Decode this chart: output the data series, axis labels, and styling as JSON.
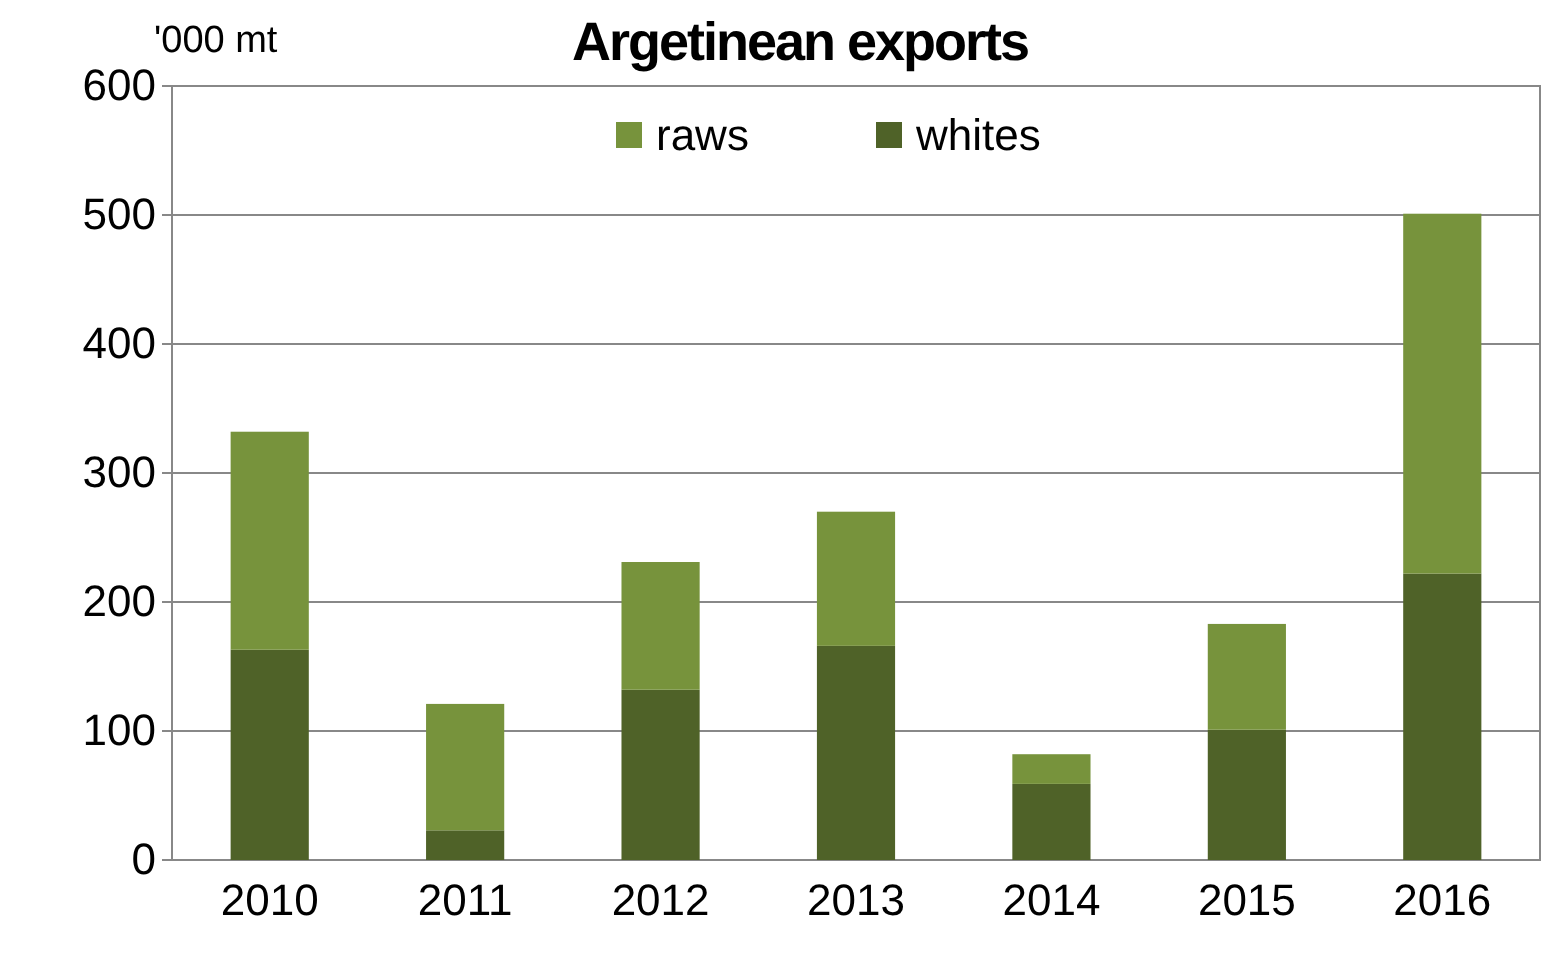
{
  "chart_data": {
    "type": "bar",
    "title": "Argetinean exports",
    "ylabel": "'000 mt",
    "categories": [
      "2010",
      "2011",
      "2012",
      "2013",
      "2014",
      "2015",
      "2016"
    ],
    "series": [
      {
        "name": "whites",
        "color": "#4f6228",
        "values": [
          163,
          23,
          132,
          166,
          59,
          101,
          222
        ]
      },
      {
        "name": "raws",
        "color": "#77933c",
        "values": [
          169,
          98,
          99,
          104,
          23,
          82,
          279
        ]
      }
    ],
    "stacked": true,
    "ylim": [
      0,
      600
    ],
    "yticks": [
      0,
      100,
      200,
      300,
      400,
      500,
      600
    ],
    "grid": "y",
    "legend": "top"
  }
}
